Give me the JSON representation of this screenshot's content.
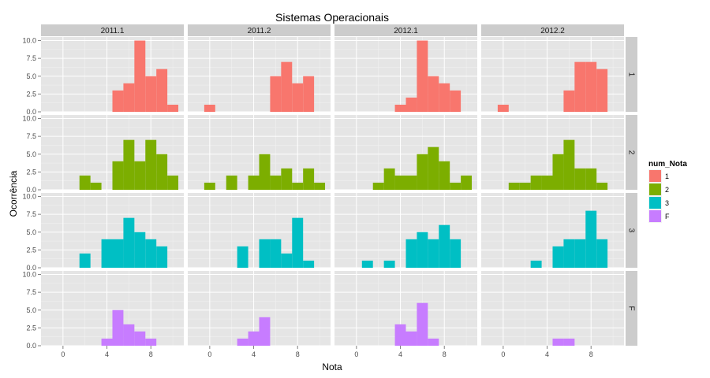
{
  "chart_data": {
    "type": "bar",
    "title": "Sistemas Operacionais",
    "xlabel": "Nota",
    "ylabel": "Ocorrência",
    "xlim": [
      -2,
      11
    ],
    "ylim": [
      0,
      10.5
    ],
    "x_ticks": [
      0,
      4,
      8
    ],
    "x_tick_labels": [
      "0",
      "4",
      "8"
    ],
    "y_ticks": [
      0,
      2.5,
      5,
      7.5,
      10
    ],
    "y_tick_labels": [
      "0.0",
      "2.5",
      "5.0",
      "7.5",
      "10.0"
    ],
    "bin_width": 1,
    "grid": true,
    "legend_position": "right",
    "legend_title": "num_Nota",
    "columns": [
      "2011.1",
      "2011.2",
      "2012.1",
      "2012.2"
    ],
    "rows": [
      "1",
      "2",
      "3",
      "F"
    ],
    "series": [
      {
        "name": "1",
        "color": "#F8766D"
      },
      {
        "name": "2",
        "color": "#7CAE00"
      },
      {
        "name": "3",
        "color": "#00BFC4"
      },
      {
        "name": "F",
        "color": "#C77CFF"
      }
    ],
    "panels": [
      {
        "col": 0,
        "row": 0,
        "bars": [
          [
            5,
            3
          ],
          [
            6,
            4
          ],
          [
            7,
            10
          ],
          [
            8,
            5
          ],
          [
            9,
            6
          ],
          [
            10,
            1
          ]
        ]
      },
      {
        "col": 1,
        "row": 0,
        "bars": [
          [
            0,
            1
          ],
          [
            6,
            5
          ],
          [
            7,
            7
          ],
          [
            8,
            4
          ],
          [
            9,
            5
          ]
        ]
      },
      {
        "col": 2,
        "row": 0,
        "bars": [
          [
            4,
            1
          ],
          [
            5,
            2
          ],
          [
            6,
            10
          ],
          [
            7,
            5
          ],
          [
            8,
            4
          ],
          [
            9,
            3
          ]
        ]
      },
      {
        "col": 3,
        "row": 0,
        "bars": [
          [
            0,
            1
          ],
          [
            6,
            3
          ],
          [
            7,
            7
          ],
          [
            8,
            7
          ],
          [
            9,
            6
          ]
        ]
      },
      {
        "col": 0,
        "row": 1,
        "bars": [
          [
            2,
            2
          ],
          [
            3,
            1
          ],
          [
            5,
            4
          ],
          [
            6,
            7
          ],
          [
            7,
            4
          ],
          [
            8,
            7
          ],
          [
            9,
            5
          ],
          [
            10,
            2
          ]
        ]
      },
      {
        "col": 1,
        "row": 1,
        "bars": [
          [
            0,
            1
          ],
          [
            2,
            2
          ],
          [
            4,
            2
          ],
          [
            5,
            5
          ],
          [
            6,
            2
          ],
          [
            7,
            3
          ],
          [
            8,
            1
          ],
          [
            9,
            3
          ],
          [
            10,
            1
          ]
        ]
      },
      {
        "col": 2,
        "row": 1,
        "bars": [
          [
            2,
            1
          ],
          [
            3,
            3
          ],
          [
            4,
            2
          ],
          [
            5,
            2
          ],
          [
            6,
            5
          ],
          [
            7,
            6
          ],
          [
            8,
            4
          ],
          [
            9,
            1
          ],
          [
            10,
            2
          ]
        ]
      },
      {
        "col": 3,
        "row": 1,
        "bars": [
          [
            1,
            1
          ],
          [
            2,
            1
          ],
          [
            3,
            2
          ],
          [
            4,
            2
          ],
          [
            5,
            5
          ],
          [
            6,
            7
          ],
          [
            7,
            3
          ],
          [
            8,
            3
          ],
          [
            9,
            1
          ]
        ]
      },
      {
        "col": 0,
        "row": 2,
        "bars": [
          [
            2,
            2
          ],
          [
            3,
            0
          ],
          [
            4,
            4
          ],
          [
            5,
            4
          ],
          [
            6,
            7
          ],
          [
            7,
            5
          ],
          [
            8,
            4
          ],
          [
            9,
            3
          ]
        ]
      },
      {
        "col": 1,
        "row": 2,
        "bars": [
          [
            3,
            3
          ],
          [
            5,
            4
          ],
          [
            6,
            4
          ],
          [
            7,
            2
          ],
          [
            8,
            7
          ],
          [
            9,
            1
          ]
        ]
      },
      {
        "col": 2,
        "row": 2,
        "bars": [
          [
            1,
            1
          ],
          [
            3,
            1
          ],
          [
            5,
            4
          ],
          [
            6,
            5
          ],
          [
            7,
            4
          ],
          [
            8,
            6
          ],
          [
            9,
            4
          ]
        ]
      },
      {
        "col": 3,
        "row": 2,
        "bars": [
          [
            3,
            1
          ],
          [
            5,
            3
          ],
          [
            6,
            4
          ],
          [
            7,
            4
          ],
          [
            8,
            8
          ],
          [
            9,
            4
          ]
        ]
      },
      {
        "col": 0,
        "row": 3,
        "bars": [
          [
            4,
            1
          ],
          [
            5,
            5
          ],
          [
            6,
            3
          ],
          [
            7,
            2
          ],
          [
            8,
            1
          ]
        ]
      },
      {
        "col": 1,
        "row": 3,
        "bars": [
          [
            3,
            1
          ],
          [
            4,
            2
          ],
          [
            5,
            4
          ]
        ]
      },
      {
        "col": 2,
        "row": 3,
        "bars": [
          [
            4,
            3
          ],
          [
            5,
            2
          ],
          [
            6,
            6
          ],
          [
            7,
            1
          ]
        ]
      },
      {
        "col": 3,
        "row": 3,
        "bars": [
          [
            5,
            1
          ],
          [
            6,
            1
          ]
        ]
      }
    ]
  }
}
